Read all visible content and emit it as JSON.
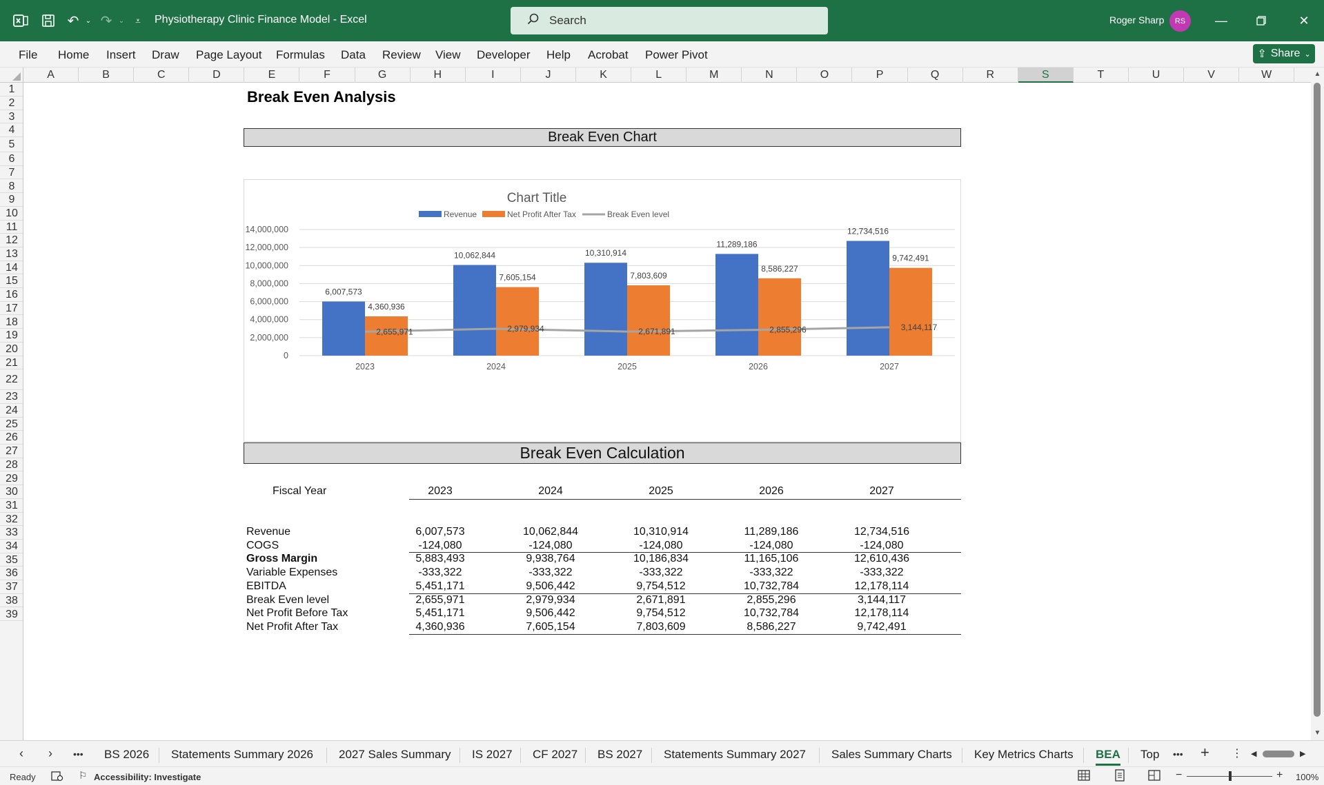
{
  "titlebar": {
    "doc_title": "Physiotherapy Clinic Finance Model  -  Excel",
    "search_placeholder": "Search",
    "user_name": "Roger Sharp",
    "user_initials": "RS"
  },
  "ribbon": {
    "tabs": [
      "File",
      "Home",
      "Insert",
      "Draw",
      "Page Layout",
      "Formulas",
      "Data",
      "Review",
      "View",
      "Developer",
      "Help",
      "Acrobat",
      "Power Pivot"
    ],
    "share_label": "Share"
  },
  "grid": {
    "columns": [
      "A",
      "B",
      "C",
      "D",
      "E",
      "F",
      "G",
      "H",
      "I",
      "J",
      "K",
      "L",
      "M",
      "N",
      "O",
      "P",
      "Q",
      "R",
      "S",
      "T",
      "U",
      "V",
      "W"
    ],
    "selected_column": "S",
    "rows": [
      "1",
      "2",
      "3",
      "4",
      "5",
      "6",
      "7",
      "8",
      "9",
      "10",
      "11",
      "12",
      "13",
      "14",
      "15",
      "16",
      "17",
      "18",
      "19",
      "20",
      "21",
      "22",
      "23",
      "24",
      "25",
      "26",
      "27",
      "28",
      "29",
      "30",
      "31",
      "32",
      "33",
      "34",
      "35",
      "36",
      "37",
      "38",
      "39"
    ]
  },
  "sheet": {
    "heading": "Break Even Analysis",
    "chart_section_title": "Break Even Chart",
    "calc_section_title": "Break Even Calculation"
  },
  "chart_data": {
    "type": "bar",
    "title": "Chart Title",
    "categories": [
      "2023",
      "2024",
      "2025",
      "2026",
      "2027"
    ],
    "series": [
      {
        "name": "Revenue",
        "kind": "bar",
        "color": "#4472c4",
        "values": [
          6007573,
          10062844,
          10310914,
          11289186,
          12734516
        ],
        "labels": [
          "6,007,573",
          "10,062,844",
          "10,310,914",
          "11,289,186",
          "12,734,516"
        ]
      },
      {
        "name": "Net Profit After Tax",
        "kind": "bar",
        "color": "#ed7d31",
        "values": [
          4360936,
          7605154,
          7803609,
          8586227,
          9742491
        ],
        "labels": [
          "4,360,936",
          "7,605,154",
          "7,803,609",
          "8,586,227",
          "9,742,491"
        ]
      },
      {
        "name": "Break Even level",
        "kind": "line",
        "color": "#a5a5a5",
        "values": [
          2655971,
          2979934,
          2671891,
          2855296,
          3144117
        ],
        "labels": [
          "2,655,971",
          "2,979,934",
          "2,671,891",
          "2,855,296",
          "3,144,117"
        ]
      }
    ],
    "ylim": [
      0,
      14000000
    ],
    "yticks": [
      0,
      2000000,
      4000000,
      6000000,
      8000000,
      10000000,
      12000000,
      14000000
    ],
    "ytick_labels": [
      "0",
      "2,000,000",
      "4,000,000",
      "6,000,000",
      "8,000,000",
      "10,000,000",
      "12,000,000",
      "14,000,000"
    ],
    "legend": "top",
    "grid": true
  },
  "table": {
    "header_label": "Fiscal Year",
    "years": [
      "2023",
      "2024",
      "2025",
      "2026",
      "2027"
    ],
    "rows": [
      {
        "label": "Revenue",
        "values": [
          "6,007,573",
          "10,062,844",
          "10,310,914",
          "11,289,186",
          "12,734,516"
        ],
        "bold": false
      },
      {
        "label": "COGS",
        "values": [
          "-124,080",
          "-124,080",
          "-124,080",
          "-124,080",
          "-124,080"
        ],
        "bold": false
      },
      {
        "label": "Gross Margin",
        "values": [
          "5,883,493",
          "9,938,764",
          "10,186,834",
          "11,165,106",
          "12,610,436"
        ],
        "bold": true
      },
      {
        "label": "Variable Expenses",
        "values": [
          "-333,322",
          "-333,322",
          "-333,322",
          "-333,322",
          "-333,322"
        ],
        "bold": false
      },
      {
        "label": "EBITDA",
        "values": [
          "5,451,171",
          "9,506,442",
          "9,754,512",
          "10,732,784",
          "12,178,114"
        ],
        "bold": false
      },
      {
        "label": "Break Even level",
        "values": [
          "2,655,971",
          "2,979,934",
          "2,671,891",
          "2,855,296",
          "3,144,117"
        ],
        "bold": false
      },
      {
        "label": "Net Profit Before Tax",
        "values": [
          "5,451,171",
          "9,506,442",
          "9,754,512",
          "10,732,784",
          "12,178,114"
        ],
        "bold": false
      },
      {
        "label": "Net Profit After Tax",
        "values": [
          "4,360,936",
          "7,605,154",
          "7,803,609",
          "8,586,227",
          "9,742,491"
        ],
        "bold": false
      }
    ]
  },
  "sheettabs": {
    "tabs": [
      "BS 2026",
      "Statements Summary 2026",
      "2027 Sales Summary",
      "IS 2027",
      "CF 2027",
      "BS 2027",
      "Statements Summary 2027",
      "Sales Summary Charts",
      "Key Metrics Charts",
      "BEA",
      "Top"
    ],
    "active": "BEA"
  },
  "statusbar": {
    "ready": "Ready",
    "accessibility": "Accessibility: Investigate",
    "zoom": "100%"
  }
}
